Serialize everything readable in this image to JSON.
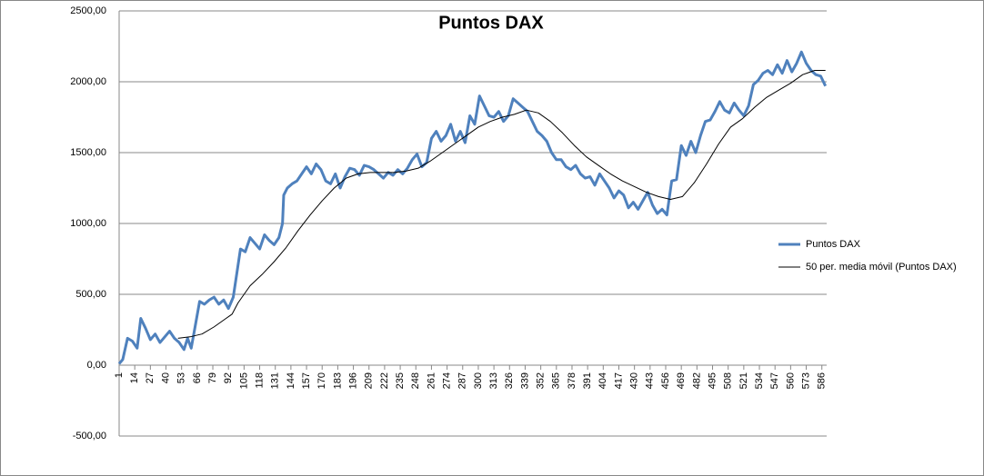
{
  "chart_data": {
    "type": "line",
    "title": "Puntos DAX",
    "xlim": [
      1,
      590
    ],
    "xticks": [
      1,
      14,
      27,
      40,
      53,
      66,
      79,
      92,
      105,
      118,
      131,
      144,
      157,
      170,
      183,
      196,
      209,
      222,
      235,
      248,
      261,
      274,
      287,
      300,
      313,
      326,
      339,
      352,
      365,
      378,
      391,
      404,
      417,
      430,
      443,
      456,
      469,
      482,
      495,
      508,
      521,
      534,
      547,
      560,
      573,
      586
    ],
    "ylim": [
      -500,
      2500
    ],
    "yticks": [
      {
        "value": -500,
        "label": "-500,00"
      },
      {
        "value": 0,
        "label": "0,00"
      },
      {
        "value": 500,
        "label": "500,00"
      },
      {
        "value": 1000,
        "label": "1000,00"
      },
      {
        "value": 1500,
        "label": "1500,00"
      },
      {
        "value": 2000,
        "label": "2000,00"
      },
      {
        "value": 2500,
        "label": "2500,00"
      }
    ],
    "negative_tick_color": "#ff0000",
    "grid": true,
    "legend": "right",
    "series": [
      {
        "name": "Puntos DAX",
        "color": "#4f81bd",
        "width": 3,
        "x": [
          1,
          4,
          8,
          12,
          16,
          19,
          23,
          27,
          31,
          35,
          39,
          43,
          47,
          51,
          55,
          58,
          61,
          64,
          68,
          72,
          76,
          80,
          84,
          88,
          92,
          96,
          99,
          102,
          106,
          110,
          114,
          118,
          122,
          126,
          130,
          134,
          137,
          138,
          141,
          145,
          149,
          153,
          157,
          161,
          165,
          169,
          173,
          177,
          181,
          185,
          189,
          193,
          197,
          201,
          205,
          209,
          213,
          217,
          221,
          225,
          229,
          233,
          237,
          241,
          245,
          249,
          253,
          257,
          261,
          265,
          269,
          273,
          277,
          281,
          285,
          289,
          293,
          297,
          301,
          305,
          309,
          313,
          317,
          321,
          325,
          329,
          333,
          337,
          341,
          345,
          349,
          353,
          357,
          361,
          365,
          369,
          373,
          377,
          381,
          385,
          389,
          393,
          397,
          401,
          405,
          409,
          413,
          417,
          421,
          425,
          429,
          433,
          437,
          441,
          445,
          449,
          453,
          457,
          461,
          465,
          469,
          473,
          477,
          481,
          485,
          489,
          493,
          497,
          501,
          505,
          509,
          513,
          517,
          521,
          525,
          529,
          533,
          537,
          541,
          545,
          549,
          553,
          557,
          561,
          565,
          569,
          573,
          577,
          581,
          585,
          589
        ],
        "values": [
          10,
          40,
          190,
          170,
          120,
          330,
          260,
          180,
          220,
          160,
          200,
          240,
          190,
          160,
          110,
          190,
          120,
          260,
          450,
          430,
          460,
          480,
          430,
          460,
          400,
          480,
          650,
          820,
          800,
          900,
          860,
          820,
          920,
          880,
          850,
          900,
          1000,
          1200,
          1250,
          1280,
          1300,
          1350,
          1400,
          1350,
          1420,
          1380,
          1300,
          1280,
          1350,
          1250,
          1330,
          1390,
          1380,
          1340,
          1410,
          1400,
          1380,
          1350,
          1320,
          1360,
          1340,
          1380,
          1350,
          1390,
          1450,
          1490,
          1400,
          1430,
          1600,
          1650,
          1580,
          1620,
          1700,
          1580,
          1650,
          1570,
          1760,
          1700,
          1900,
          1830,
          1760,
          1750,
          1790,
          1720,
          1760,
          1880,
          1850,
          1820,
          1790,
          1720,
          1650,
          1620,
          1580,
          1500,
          1450,
          1450,
          1400,
          1380,
          1410,
          1350,
          1320,
          1330,
          1270,
          1350,
          1300,
          1250,
          1180,
          1230,
          1200,
          1110,
          1150,
          1100,
          1160,
          1220,
          1130,
          1070,
          1100,
          1060,
          1300,
          1310,
          1550,
          1480,
          1580,
          1500,
          1620,
          1720,
          1730,
          1790,
          1860,
          1800,
          1780,
          1850,
          1800,
          1760,
          1830,
          1980,
          2010,
          2060,
          2080,
          2050,
          2120,
          2060,
          2150,
          2070,
          2130,
          2210,
          2130,
          2080,
          2050,
          2040,
          1970
        ]
      },
      {
        "name": "50 per. media móvil (Puntos DAX)",
        "color": "#000000",
        "width": 1,
        "x": [
          50,
          60,
          70,
          80,
          90,
          95,
          100,
          110,
          120,
          130,
          140,
          150,
          160,
          170,
          180,
          190,
          200,
          210,
          220,
          230,
          240,
          250,
          260,
          270,
          280,
          290,
          300,
          310,
          320,
          330,
          340,
          350,
          360,
          370,
          380,
          390,
          400,
          410,
          420,
          430,
          440,
          450,
          460,
          470,
          480,
          490,
          500,
          510,
          520,
          530,
          540,
          550,
          560,
          570,
          580,
          589
        ],
        "values": [
          190,
          200,
          220,
          270,
          330,
          360,
          440,
          560,
          640,
          730,
          830,
          950,
          1060,
          1160,
          1250,
          1320,
          1350,
          1360,
          1360,
          1360,
          1370,
          1390,
          1440,
          1500,
          1560,
          1620,
          1680,
          1720,
          1750,
          1770,
          1800,
          1780,
          1720,
          1640,
          1550,
          1470,
          1410,
          1350,
          1300,
          1260,
          1220,
          1190,
          1170,
          1190,
          1290,
          1420,
          1560,
          1680,
          1740,
          1820,
          1890,
          1940,
          1990,
          2050,
          2080,
          2080
        ]
      }
    ]
  }
}
